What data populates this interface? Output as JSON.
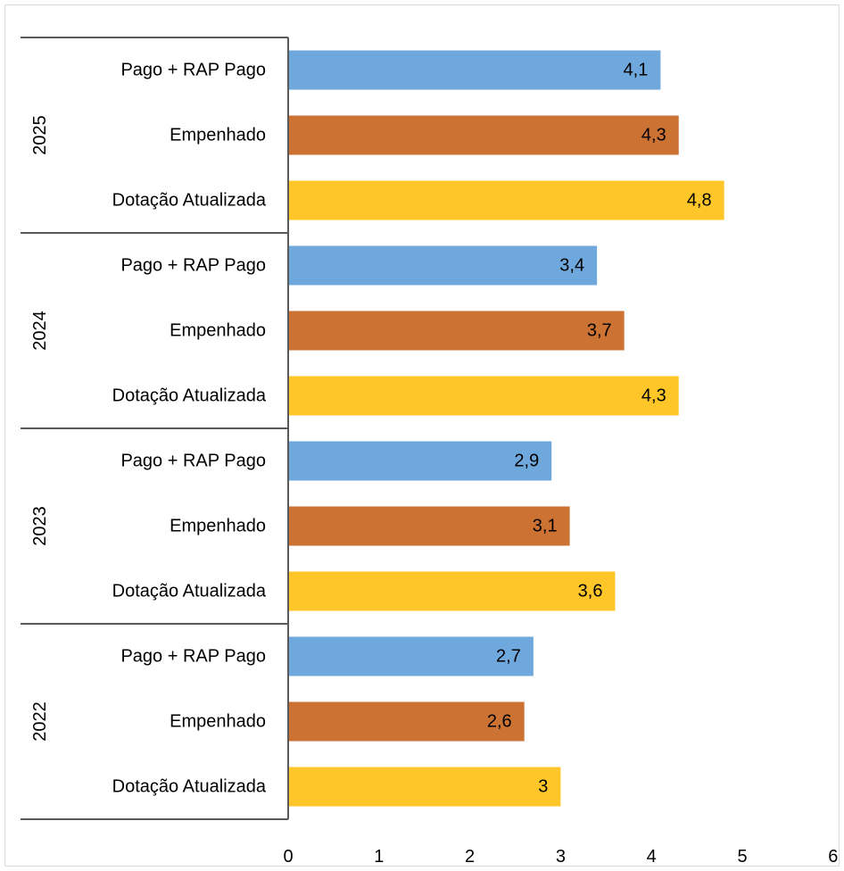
{
  "chart_data": {
    "type": "bar",
    "orientation": "horizontal",
    "groups": [
      {
        "label": "2025",
        "categories": [
          "Pago + RAP Pago",
          "Empenhado",
          "Dotação Atualizada"
        ],
        "values": [
          4.1,
          4.3,
          4.8
        ],
        "value_labels": [
          "4,1",
          "4,3",
          "4,8"
        ]
      },
      {
        "label": "2024",
        "categories": [
          "Pago + RAP Pago",
          "Empenhado",
          "Dotação Atualizada"
        ],
        "values": [
          3.4,
          3.7,
          4.3
        ],
        "value_labels": [
          "3,4",
          "3,7",
          "4,3"
        ]
      },
      {
        "label": "2023",
        "categories": [
          "Pago + RAP Pago",
          "Empenhado",
          "Dotação Atualizada"
        ],
        "values": [
          2.9,
          3.1,
          3.6
        ],
        "value_labels": [
          "2,9",
          "3,1",
          "3,6"
        ]
      },
      {
        "label": "2022",
        "categories": [
          "Pago + RAP Pago",
          "Empenhado",
          "Dotação Atualizada"
        ],
        "values": [
          2.7,
          2.6,
          3.0
        ],
        "value_labels": [
          "2,7",
          "2,6",
          "3"
        ]
      }
    ],
    "category_colors": {
      "Pago + RAP Pago": "#6FA8DC",
      "Empenhado": "#CC7233",
      "Dotação Atualizada": "#FFC629"
    },
    "xlim": [
      0,
      6
    ],
    "x_ticks": [
      0,
      1,
      2,
      3,
      4,
      5,
      6
    ],
    "x_tick_labels": [
      "0",
      "1",
      "2",
      "3",
      "4",
      "5",
      "6"
    ],
    "grid": false,
    "title": "",
    "xlabel": "",
    "ylabel": ""
  }
}
